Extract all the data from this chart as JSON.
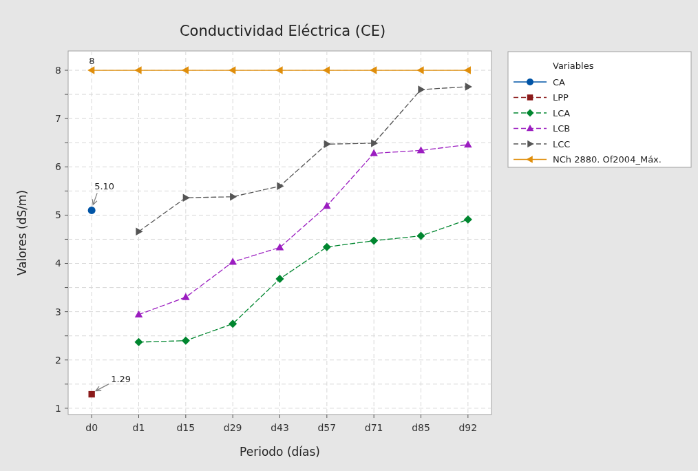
{
  "chart_data": {
    "type": "line",
    "title": "Conductividad Eléctrica (CE)",
    "xlabel": "Periodo (días)",
    "ylabel": "Valores (dS/m)",
    "legend_title": "Variables",
    "categories": [
      "d0",
      "d1",
      "d15",
      "d29",
      "d43",
      "d57",
      "d71",
      "d85",
      "d92"
    ],
    "series": [
      {
        "name": "CA",
        "color": "#0054a6",
        "marker": "circle",
        "line_style": "solid",
        "values": [
          5.1,
          null,
          null,
          null,
          null,
          null,
          null,
          null,
          null
        ]
      },
      {
        "name": "LPP",
        "color": "#8b1a1a",
        "marker": "square",
        "line_style": "dashed",
        "values": [
          1.29,
          null,
          null,
          null,
          null,
          null,
          null,
          null,
          null
        ]
      },
      {
        "name": "LCA",
        "color": "#00862f",
        "marker": "diamond",
        "line_style": "dashed",
        "values": [
          null,
          2.37,
          2.4,
          2.75,
          3.68,
          4.34,
          4.47,
          4.57,
          4.91
        ]
      },
      {
        "name": "LCB",
        "color": "#9b1dc0",
        "marker": "triangle",
        "line_style": "dashed",
        "values": [
          null,
          2.94,
          3.3,
          4.03,
          4.33,
          5.19,
          6.28,
          6.34,
          6.46
        ]
      },
      {
        "name": "LCC",
        "color": "#555555",
        "marker": "triangle-right",
        "line_style": "dashed",
        "values": [
          null,
          4.66,
          5.36,
          5.38,
          5.6,
          6.47,
          6.49,
          7.6,
          7.66
        ]
      },
      {
        "name": "NCh 2880. Of2004_Máx.",
        "color": "#e08e0b",
        "marker": "triangle-left",
        "line_style": "solid",
        "values": [
          8,
          8,
          8,
          8,
          8,
          8,
          8,
          8,
          8
        ]
      }
    ],
    "ylim": [
      0.87,
      8.4
    ],
    "yticks": [
      1,
      {
        "value": 1.5,
        "label": null
      },
      2,
      {
        "value": 2.5,
        "label": null
      },
      3,
      {
        "value": 3.5,
        "label": null
      },
      4,
      {
        "value": 4.5,
        "label": null
      },
      5,
      {
        "value": 5.5,
        "label": null
      },
      6,
      {
        "value": 6.5,
        "label": null
      },
      7,
      {
        "value": 7.5,
        "label": null
      },
      8
    ],
    "grid": true,
    "legend": "top right",
    "annotations": [
      {
        "text": "8",
        "x": "d0",
        "y": 8
      },
      {
        "text": "5.10",
        "x": "d0",
        "y": 5.1
      },
      {
        "text": "1.29",
        "x": "d0",
        "y": 1.29
      }
    ]
  }
}
